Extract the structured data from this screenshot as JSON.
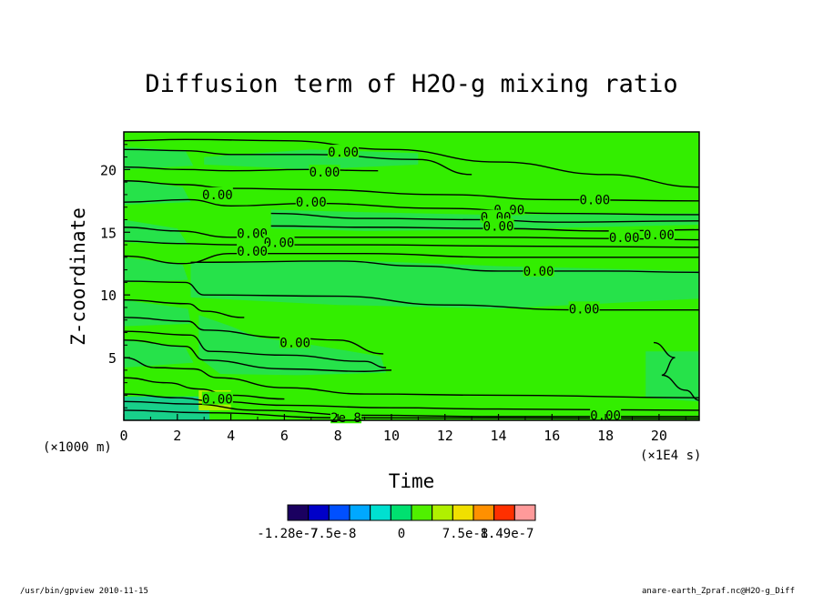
{
  "chart_data": {
    "type": "heatmap",
    "title": "Diffusion term of H2O-g mixing ratio",
    "xlabel": "Time",
    "ylabel": "Z-coordinate",
    "x_unit": "(×1E4 s)",
    "y_unit": "(×1000 m)",
    "xlim": [
      0,
      21.5
    ],
    "ylim": [
      0,
      23
    ],
    "x_ticks": [
      "0",
      "2",
      "4",
      "6",
      "8",
      "10",
      "12",
      "14",
      "16",
      "18",
      "20"
    ],
    "y_ticks": [
      "5",
      "10",
      "15",
      "20"
    ],
    "contour_labels": [
      {
        "x": 8.2,
        "y": 21.4,
        "text": "0.00"
      },
      {
        "x": 7.5,
        "y": 19.8,
        "text": "0.00"
      },
      {
        "x": 3.5,
        "y": 18.0,
        "text": "0.00"
      },
      {
        "x": 7.0,
        "y": 17.4,
        "text": "0.00"
      },
      {
        "x": 14.4,
        "y": 16.8,
        "text": "0.00"
      },
      {
        "x": 13.9,
        "y": 16.2,
        "text": "0.00"
      },
      {
        "x": 14.0,
        "y": 15.5,
        "text": "0.00"
      },
      {
        "x": 17.6,
        "y": 17.6,
        "text": "0.00"
      },
      {
        "x": 4.8,
        "y": 14.9,
        "text": "0.00"
      },
      {
        "x": 5.8,
        "y": 14.2,
        "text": "0.00"
      },
      {
        "x": 4.8,
        "y": 13.5,
        "text": "0.00"
      },
      {
        "x": 18.7,
        "y": 14.6,
        "text": "0.00"
      },
      {
        "x": 20.0,
        "y": 14.8,
        "text": "0.00"
      },
      {
        "x": 15.5,
        "y": 11.9,
        "text": "0.00"
      },
      {
        "x": 17.2,
        "y": 8.9,
        "text": "0.00"
      },
      {
        "x": 6.4,
        "y": 6.2,
        "text": "0.00"
      },
      {
        "x": 18.0,
        "y": 0.4,
        "text": "0.00"
      },
      {
        "x": 8.3,
        "y": 0.2,
        "text": "2e 8"
      },
      {
        "x": 3.5,
        "y": 1.7,
        "text": "0.00"
      }
    ],
    "colorbar": {
      "colors": [
        "#1a0060",
        "#0000c8",
        "#0050ff",
        "#00a8ff",
        "#00e0d0",
        "#00e070",
        "#50f000",
        "#b0f000",
        "#f0e000",
        "#ff9000",
        "#ff3000",
        "#ff9a9a"
      ],
      "tick_labels": [
        "-1.28e-7",
        "-7.5e-8",
        "0",
        "7.5e-8",
        "1.49e-7"
      ]
    },
    "background_color": "#33ee00"
  },
  "footer": {
    "left": "/usr/bin/gpview  2010-11-15",
    "right": "anare-earth_Zpraf.nc@H2O-g_Diff"
  }
}
